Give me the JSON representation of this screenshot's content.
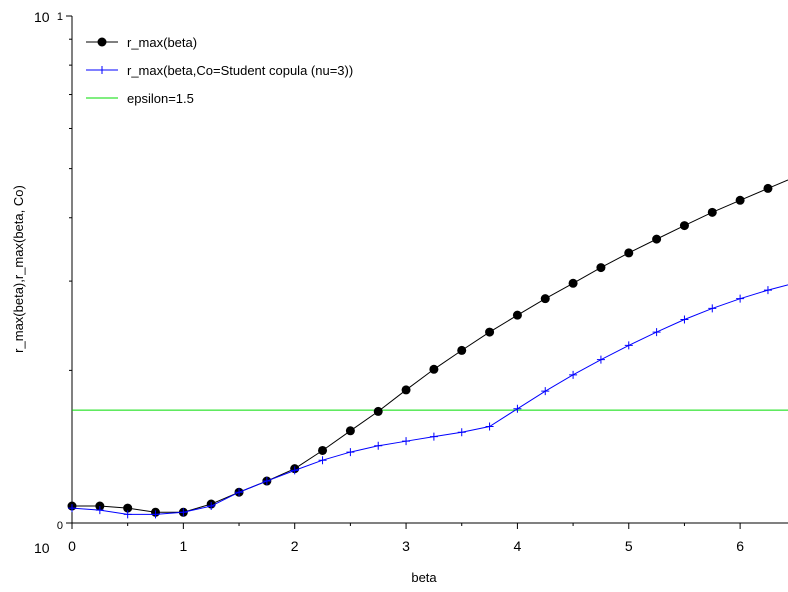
{
  "chart_data": {
    "type": "line",
    "xlabel": "beta",
    "ylabel": "r_max(beta),r_max(beta, Co)",
    "xlim": [
      0,
      6.43
    ],
    "y_scale": "log",
    "ylim": [
      1,
      10
    ],
    "x_ticks": [
      0,
      1,
      2,
      3,
      4,
      5,
      6
    ],
    "x_tick_labels": [
      "0",
      "1",
      "2",
      "3",
      "4",
      "5",
      "6"
    ],
    "y_ticks": [
      1,
      10
    ],
    "y_tick_labels": [
      {
        "base": "10",
        "exp": "0"
      },
      {
        "base": "10",
        "exp": "1"
      }
    ],
    "grid": false,
    "legend_position": "top-left",
    "series": [
      {
        "name": "r_max(beta)",
        "color": "#000000",
        "marker": "filled-circle",
        "x": [
          0,
          0.25,
          0.5,
          0.75,
          1,
          1.25,
          1.5,
          1.75,
          2,
          2.25,
          2.5,
          2.75,
          3,
          3.25,
          3.5,
          3.75,
          4,
          4.25,
          4.5,
          4.75,
          5,
          5.25,
          5.5,
          5.75,
          6,
          6.25,
          6.43
        ],
        "y": [
          1.08,
          1.08,
          1.07,
          1.05,
          1.05,
          1.09,
          1.15,
          1.21,
          1.28,
          1.39,
          1.52,
          1.66,
          1.83,
          2.01,
          2.19,
          2.38,
          2.57,
          2.77,
          2.97,
          3.19,
          3.41,
          3.63,
          3.86,
          4.1,
          4.33,
          4.57,
          4.75
        ]
      },
      {
        "name": "r_max(beta,Co=Student copula (nu=3))",
        "color": "#0000ff",
        "marker": "plus",
        "x": [
          0,
          0.25,
          0.5,
          0.75,
          1,
          1.25,
          1.5,
          1.75,
          2,
          2.25,
          2.5,
          2.75,
          3,
          3.25,
          3.5,
          3.75,
          4,
          4.25,
          4.5,
          4.75,
          5,
          5.25,
          5.5,
          5.75,
          6,
          6.25,
          6.43
        ],
        "y": [
          1.07,
          1.06,
          1.04,
          1.04,
          1.05,
          1.08,
          1.15,
          1.21,
          1.27,
          1.33,
          1.38,
          1.42,
          1.45,
          1.48,
          1.51,
          1.55,
          1.68,
          1.82,
          1.96,
          2.1,
          2.24,
          2.38,
          2.52,
          2.65,
          2.77,
          2.88,
          2.95
        ]
      },
      {
        "name": "epsilon=1.5",
        "color": "#00dd00",
        "marker": "none",
        "x": [
          0,
          6.43
        ],
        "y": [
          1.67,
          1.67
        ]
      }
    ]
  }
}
